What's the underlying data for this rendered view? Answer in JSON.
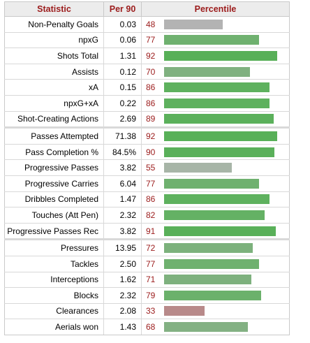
{
  "headers": {
    "statistic": "Statistic",
    "per90": "Per 90",
    "percentile": "Percentile"
  },
  "colors": {
    "header_text": "#9b1b1b",
    "high": "#5bb15b",
    "mid": "#7fb07f",
    "low": "#a8b5a8",
    "weak": "#bcbcbc",
    "poor": "#b88a8a"
  },
  "groups": [
    {
      "rows": [
        {
          "stat": "Non-Penalty Goals",
          "per90": "0.03",
          "pct": "48",
          "percentile": 48,
          "color": "#b3b3b3"
        },
        {
          "stat": "npxG",
          "per90": "0.06",
          "pct": "77",
          "percentile": 77,
          "color": "#6fb16f"
        },
        {
          "stat": "Shots Total",
          "per90": "1.31",
          "pct": "92",
          "percentile": 92,
          "color": "#58b058"
        },
        {
          "stat": "Assists",
          "per90": "0.12",
          "pct": "70",
          "percentile": 70,
          "color": "#80b180"
        },
        {
          "stat": "xA",
          "per90": "0.15",
          "pct": "86",
          "percentile": 86,
          "color": "#5eb15e"
        },
        {
          "stat": "npxG+xA",
          "per90": "0.22",
          "pct": "86",
          "percentile": 86,
          "color": "#5eb15e"
        },
        {
          "stat": "Shot-Creating Actions",
          "per90": "2.69",
          "pct": "89",
          "percentile": 89,
          "color": "#5bb05b"
        }
      ]
    },
    {
      "rows": [
        {
          "stat": "Passes Attempted",
          "per90": "71.38",
          "pct": "92",
          "percentile": 92,
          "color": "#58b058"
        },
        {
          "stat": "Pass Completion %",
          "per90": "84.5%",
          "pct": "90",
          "percentile": 90,
          "color": "#5ab05a"
        },
        {
          "stat": "Progressive Passes",
          "per90": "3.82",
          "pct": "55",
          "percentile": 55,
          "color": "#a7b5a7"
        },
        {
          "stat": "Progressive Carries",
          "per90": "6.04",
          "pct": "77",
          "percentile": 77,
          "color": "#6fb16f"
        },
        {
          "stat": "Dribbles Completed",
          "per90": "1.47",
          "pct": "86",
          "percentile": 86,
          "color": "#5eb15e"
        },
        {
          "stat": "Touches (Att Pen)",
          "per90": "2.32",
          "pct": "82",
          "percentile": 82,
          "color": "#64b164"
        },
        {
          "stat": "Progressive Passes Rec",
          "per90": "3.82",
          "pct": "91",
          "percentile": 91,
          "color": "#59b059"
        }
      ]
    },
    {
      "rows": [
        {
          "stat": "Pressures",
          "per90": "13.95",
          "pct": "72",
          "percentile": 72,
          "color": "#7cb17c"
        },
        {
          "stat": "Tackles",
          "per90": "2.50",
          "pct": "77",
          "percentile": 77,
          "color": "#6fb16f"
        },
        {
          "stat": "Interceptions",
          "per90": "1.62",
          "pct": "71",
          "percentile": 71,
          "color": "#7eb17e"
        },
        {
          "stat": "Blocks",
          "per90": "2.32",
          "pct": "79",
          "percentile": 79,
          "color": "#6bb16b"
        },
        {
          "stat": "Clearances",
          "per90": "2.08",
          "pct": "33",
          "percentile": 33,
          "color": "#b88a8a"
        },
        {
          "stat": "Aerials won",
          "per90": "1.43",
          "pct": "68",
          "percentile": 68,
          "color": "#83b183"
        }
      ]
    }
  ]
}
